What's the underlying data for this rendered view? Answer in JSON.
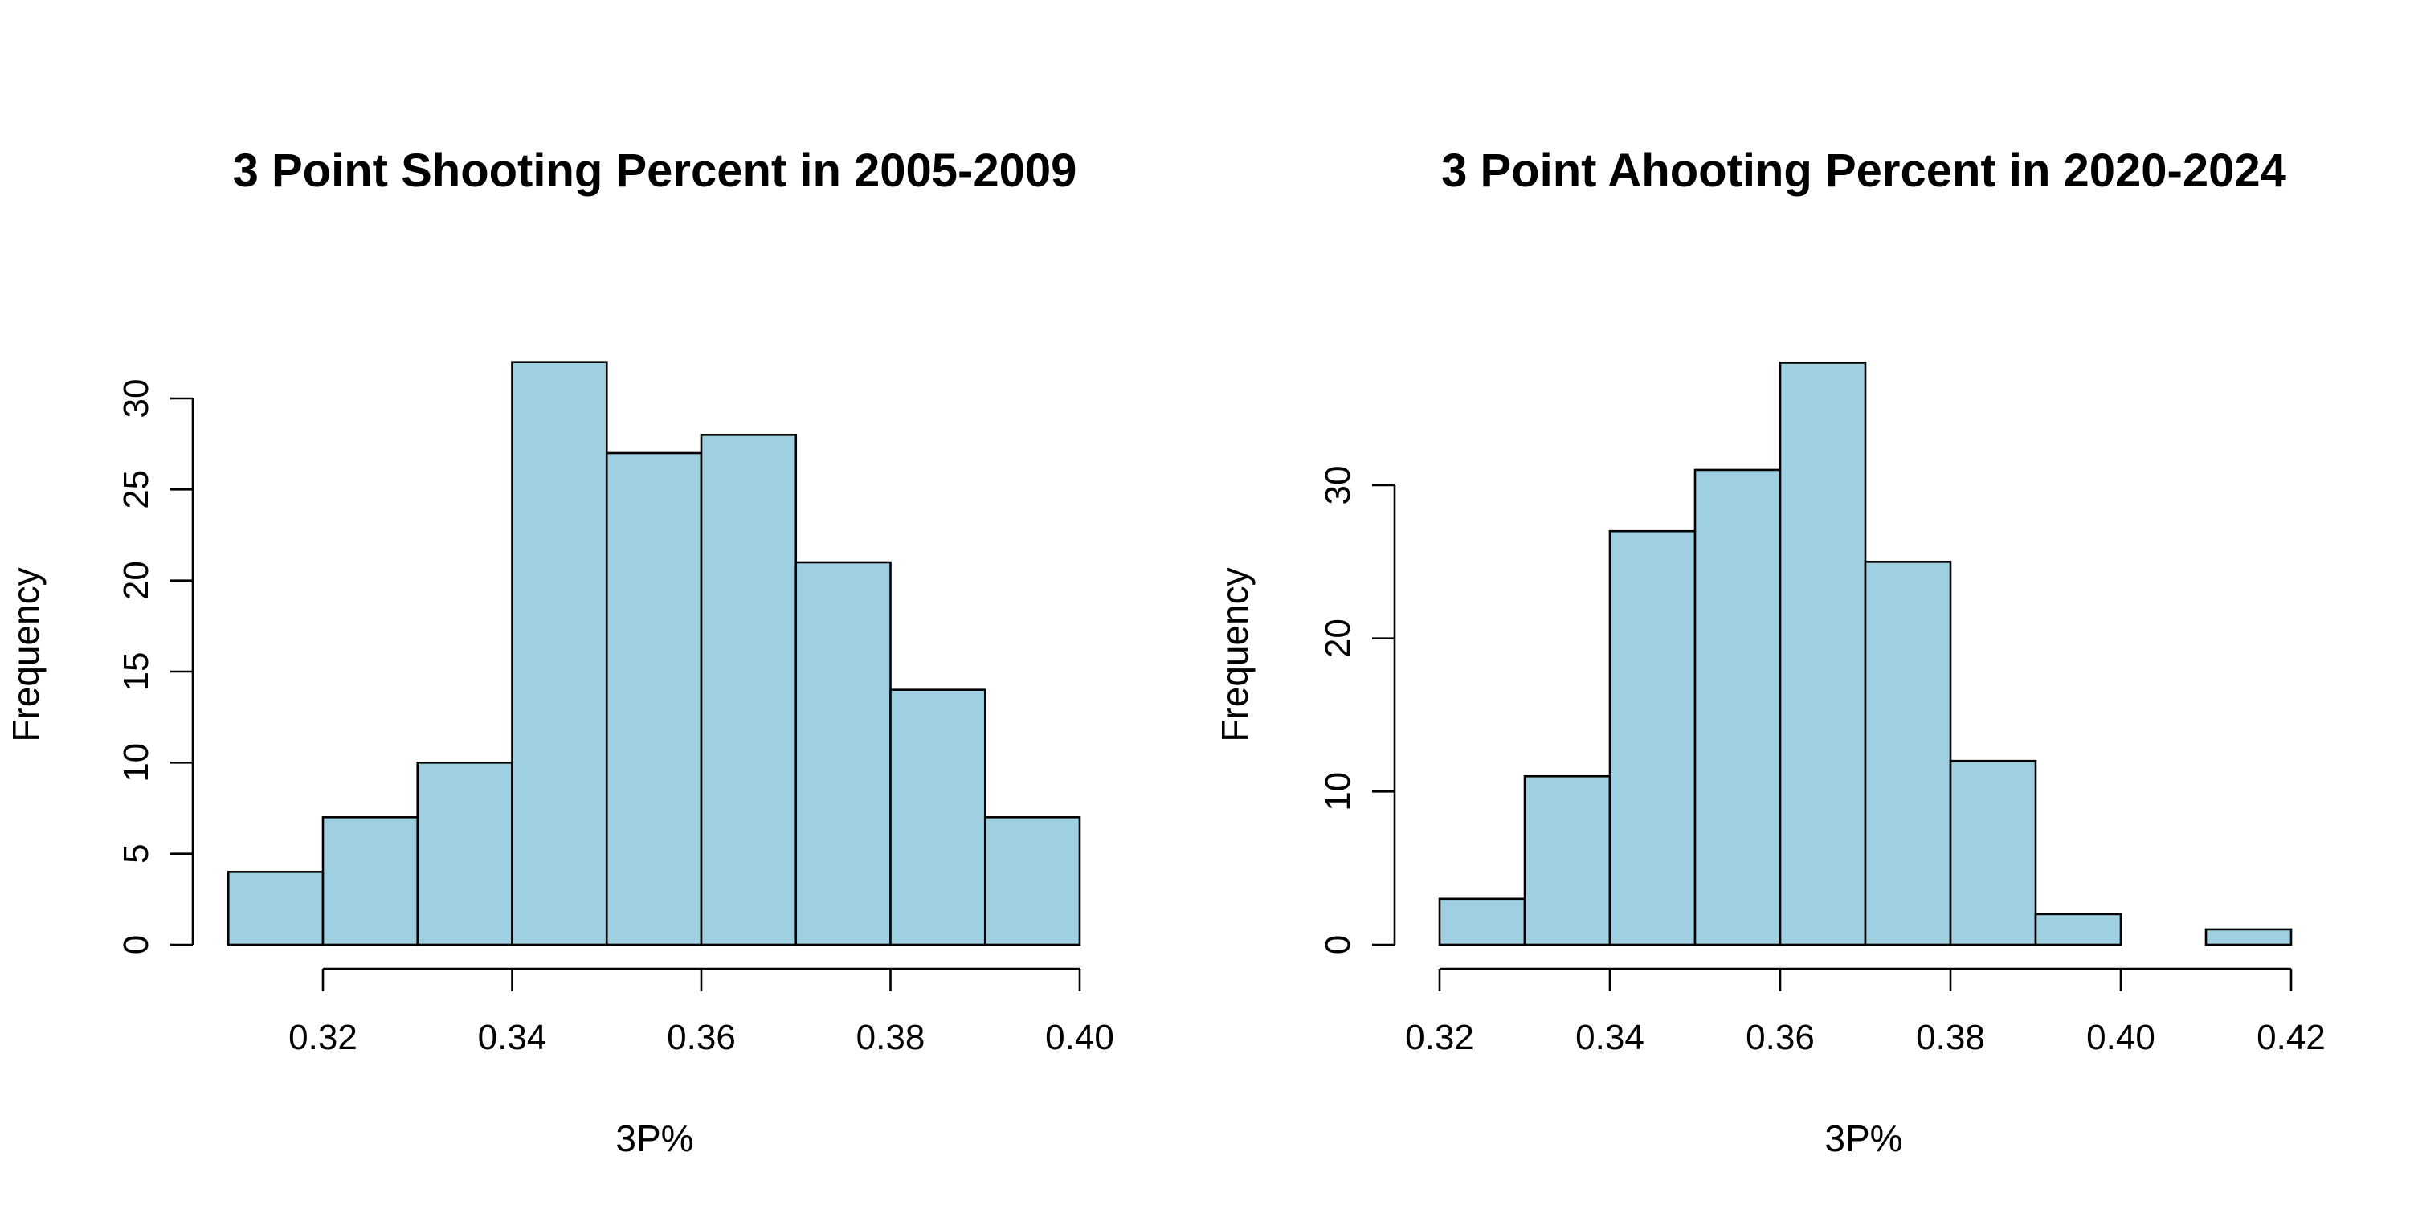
{
  "chart_data": [
    {
      "type": "histogram",
      "title": "3 Point Shooting Percent in 2005-2009",
      "xlabel": "3P%",
      "ylabel": "Frequency",
      "bin_width": 0.01,
      "bins": [
        {
          "start": 0.31,
          "end": 0.32,
          "count": 4
        },
        {
          "start": 0.32,
          "end": 0.33,
          "count": 7
        },
        {
          "start": 0.33,
          "end": 0.34,
          "count": 10
        },
        {
          "start": 0.34,
          "end": 0.35,
          "count": 32
        },
        {
          "start": 0.35,
          "end": 0.36,
          "count": 27
        },
        {
          "start": 0.36,
          "end": 0.37,
          "count": 28
        },
        {
          "start": 0.37,
          "end": 0.38,
          "count": 21
        },
        {
          "start": 0.38,
          "end": 0.39,
          "count": 14
        },
        {
          "start": 0.39,
          "end": 0.4,
          "count": 7
        }
      ],
      "x_ticks": [
        0.32,
        0.34,
        0.36,
        0.38,
        0.4
      ],
      "x_tick_labels": [
        "0.32",
        "0.34",
        "0.36",
        "0.38",
        "0.40"
      ],
      "y_ticks": [
        0,
        5,
        10,
        15,
        20,
        25,
        30
      ],
      "y_tick_labels": [
        "0",
        "5",
        "10",
        "15",
        "20",
        "25",
        "30"
      ],
      "xlim": [
        0.31,
        0.4
      ],
      "ylim": [
        0,
        32
      ],
      "bar_color": "#9fd0e1",
      "grid": false
    },
    {
      "type": "histogram",
      "title": "3 Point Ahooting Percent in 2020-2024",
      "xlabel": "3P%",
      "ylabel": "Frequency",
      "bin_width": 0.01,
      "bins": [
        {
          "start": 0.32,
          "end": 0.33,
          "count": 3
        },
        {
          "start": 0.33,
          "end": 0.34,
          "count": 11
        },
        {
          "start": 0.34,
          "end": 0.35,
          "count": 27
        },
        {
          "start": 0.35,
          "end": 0.36,
          "count": 31
        },
        {
          "start": 0.36,
          "end": 0.37,
          "count": 38
        },
        {
          "start": 0.37,
          "end": 0.38,
          "count": 25
        },
        {
          "start": 0.38,
          "end": 0.39,
          "count": 12
        },
        {
          "start": 0.39,
          "end": 0.4,
          "count": 2
        },
        {
          "start": 0.4,
          "end": 0.41,
          "count": 0
        },
        {
          "start": 0.41,
          "end": 0.42,
          "count": 1
        }
      ],
      "x_ticks": [
        0.32,
        0.34,
        0.36,
        0.38,
        0.4,
        0.42
      ],
      "x_tick_labels": [
        "0.32",
        "0.34",
        "0.36",
        "0.38",
        "0.40",
        "0.42"
      ],
      "y_ticks": [
        0,
        10,
        20,
        30
      ],
      "y_tick_labels": [
        "0",
        "10",
        "20",
        "30"
      ],
      "xlim": [
        0.32,
        0.42
      ],
      "ylim": [
        0,
        38
      ],
      "bar_color": "#9fd0e1",
      "grid": false
    }
  ]
}
